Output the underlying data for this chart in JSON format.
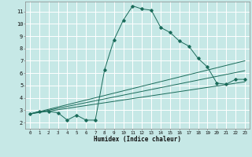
{
  "xlabel": "Humidex (Indice chaleur)",
  "bg_color": "#c6e8e6",
  "grid_color": "#ffffff",
  "line_color": "#1a6b5a",
  "xlim": [
    -0.5,
    23.5
  ],
  "ylim": [
    1.5,
    11.8
  ],
  "xticks": [
    0,
    1,
    2,
    3,
    4,
    5,
    6,
    7,
    8,
    9,
    10,
    11,
    12,
    13,
    14,
    15,
    16,
    17,
    18,
    19,
    20,
    21,
    22,
    23
  ],
  "yticks": [
    2,
    3,
    4,
    5,
    6,
    7,
    8,
    9,
    10,
    11
  ],
  "line1_x": [
    0,
    1,
    2,
    3,
    4,
    5,
    6,
    7,
    8,
    9,
    10,
    11,
    12,
    13,
    14,
    15,
    16,
    17,
    18,
    19,
    20,
    21,
    22,
    23
  ],
  "line1_y": [
    2.7,
    2.9,
    2.9,
    2.8,
    2.2,
    2.6,
    2.2,
    2.2,
    6.3,
    8.7,
    10.3,
    11.45,
    11.2,
    11.1,
    9.7,
    9.3,
    8.6,
    8.2,
    7.2,
    6.5,
    5.2,
    5.1,
    5.5,
    5.5
  ],
  "line2_x": [
    0,
    23
  ],
  "line2_y": [
    2.7,
    7.0
  ],
  "line3_x": [
    0,
    23
  ],
  "line3_y": [
    2.7,
    6.2
  ],
  "line4_x": [
    0,
    23
  ],
  "line4_y": [
    2.7,
    5.3
  ]
}
